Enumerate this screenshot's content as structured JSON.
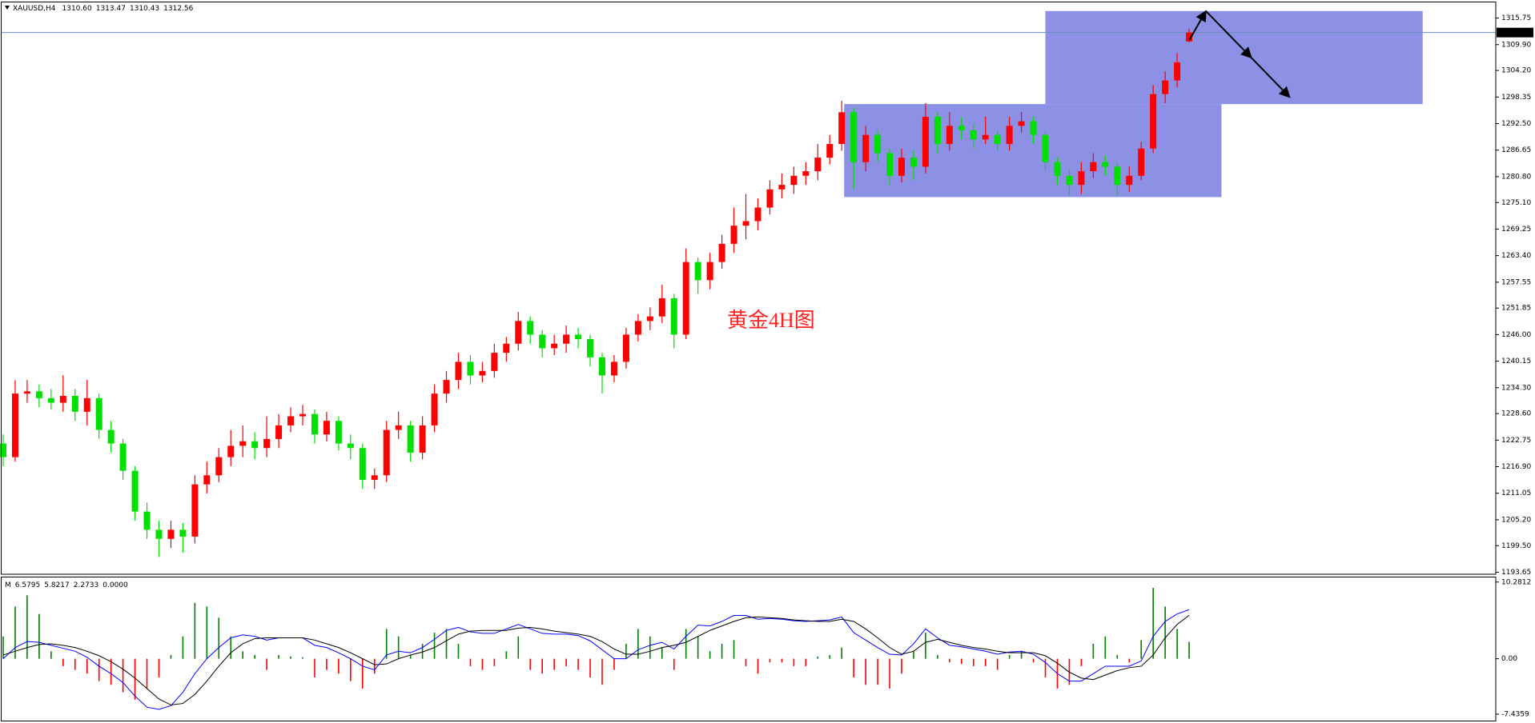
{
  "chart_data": [
    {
      "type": "candlestick",
      "title": "XAUUSD,H4",
      "header_values": [
        {
          "value": 1310.6,
          "label": "1310.60"
        },
        1313.47,
        1310.43,
        1312.56
      ],
      "annotation": "黄金4H图",
      "up_color": "#ff0000",
      "down_color": "#00e000",
      "zone_color": "#8c91e6",
      "last_price": 1312.56,
      "ylim": [
        1193.2,
        1319.2
      ],
      "yticks": [
        1315.75,
        {
          "value": 1309.9,
          "label": "1309.90"
        },
        {
          "value": 1304.2,
          "label": "1304.20"
        },
        1298.35,
        {
          "value": 1292.5,
          "label": "1292.50"
        },
        1286.65,
        {
          "value": 1280.8,
          "label": "1280.80"
        },
        {
          "value": 1275.1,
          "label": "1275.10"
        },
        1269.25,
        {
          "value": 1263.4,
          "label": "1263.40"
        },
        1257.55,
        1251.85,
        {
          "value": 1246,
          "label": "1246.00"
        },
        1240.15,
        {
          "value": 1234.3,
          "label": "1234.30"
        },
        {
          "value": 1228.6,
          "label": "1228.60"
        },
        1222.75,
        {
          "value": 1216.9,
          "label": "1216.90"
        },
        1211.05,
        {
          "value": 1205.2,
          "label": "1205.20"
        },
        {
          "value": 1199.5,
          "label": "1199.50"
        },
        1193.65
      ],
      "candles": {
        "open": [
          1222,
          1219,
          1233,
          1233.5,
          1232,
          1231,
          1232.5,
          1229,
          1232,
          1225,
          1222,
          1216,
          1207,
          1203,
          1201,
          1203,
          1201.5,
          1213,
          1215,
          1219,
          1221.5,
          1222.5,
          1221,
          1223,
          1226,
          1228,
          1228.5,
          1224,
          1227,
          1222,
          1221,
          1214,
          1215,
          1225,
          1226,
          1220,
          1226,
          1233,
          1236,
          1240,
          1237,
          1238,
          1242,
          1244,
          1249,
          1246,
          1243,
          1244,
          1246,
          1245,
          1241,
          1237,
          1240,
          1246,
          1249,
          1250,
          1254,
          1246,
          1262,
          1258,
          1262,
          1266,
          1270,
          1271,
          1274,
          1278,
          1279,
          1281,
          1282,
          1285,
          1288,
          1295,
          1284,
          1290,
          1286,
          1281,
          1285,
          1283,
          1294,
          1288,
          1292,
          1291,
          1289,
          1290,
          1288,
          1292,
          1293,
          1290,
          1284,
          1281,
          1279,
          1282,
          1284,
          1283,
          1279,
          1281,
          1287,
          1299,
          1302,
          1310.6
        ],
        "high": [
          1224,
          1236,
          1236,
          1235,
          1234,
          1237,
          1234,
          1236,
          1233,
          1227,
          1223,
          1217,
          1209,
          1205,
          1205,
          1204.5,
          1215,
          1218,
          1221,
          1225,
          1226,
          1224.5,
          1228,
          1228.5,
          1230,
          1230.5,
          1229.5,
          1229,
          1228,
          1224,
          1222,
          1216.5,
          1227,
          1229,
          1227,
          1228,
          1235,
          1238,
          1242,
          1241.5,
          1240,
          1244,
          1245.5,
          1251,
          1250,
          1247,
          1246,
          1248,
          1247.5,
          1246,
          1242,
          1241.5,
          1247.5,
          1250.5,
          1252,
          1257,
          1255,
          1265,
          1263,
          1264,
          1268,
          1274,
          1277,
          1276,
          1280,
          1281.5,
          1283,
          1284,
          1288,
          1290,
          1297.5,
          1296,
          1292,
          1291,
          1287,
          1287,
          1286.5,
          1297,
          1295,
          1295,
          1294,
          1292.5,
          1294,
          1291,
          1294,
          1295,
          1294,
          1291,
          1285,
          1282.5,
          1284,
          1286,
          1285.5,
          1284,
          1283,
          1288.5,
          1301,
          1304,
          1308,
          1313.47
        ],
        "low": [
          1217,
          1218,
          1231,
          1230,
          1229.5,
          1229,
          1227,
          1226,
          1223,
          1220,
          1214,
          1205,
          1201,
          1197,
          1199,
          1198,
          1200,
          1211,
          1213.5,
          1217,
          1219,
          1218.5,
          1219,
          1221,
          1224.5,
          1226,
          1222,
          1222.5,
          1220.5,
          1218.5,
          1212,
          1212,
          1213.5,
          1223,
          1218,
          1218.5,
          1224.5,
          1231,
          1234,
          1235,
          1235.5,
          1236.5,
          1240,
          1242.5,
          1244,
          1241,
          1241.5,
          1242,
          1243,
          1239,
          1233,
          1235.5,
          1238.5,
          1244.5,
          1247,
          1248.5,
          1243,
          1245,
          1255,
          1256,
          1260.5,
          1264,
          1267,
          1269,
          1272.5,
          1276,
          1277,
          1279,
          1280,
          1283.5,
          1286.5,
          1278,
          1282,
          1284,
          1279,
          1279.5,
          1280,
          1281.5,
          1286,
          1286.5,
          1289,
          1287,
          1288,
          1286.5,
          1286.5,
          1290.5,
          1288,
          1282,
          1279,
          1276.5,
          1277,
          1280.5,
          1281,
          1276.5,
          1277.5,
          1280,
          1286,
          1297,
          1300.5,
          1310.43
        ],
        "close": [
          1219,
          1233,
          1233.5,
          1232,
          1231,
          1232.5,
          1229,
          1232,
          1225,
          1222,
          1216,
          1207,
          1203,
          1201,
          1203,
          1201.5,
          1213,
          1215,
          1219,
          1221.5,
          1222.5,
          1221,
          1223,
          1226,
          1228,
          1228.5,
          1224,
          1227,
          1222,
          1221,
          1214,
          1215,
          1225,
          1226,
          1220,
          1226,
          1233,
          1236,
          1240,
          1237,
          1238,
          1242,
          1244,
          1249,
          1246,
          1243,
          1244,
          1246,
          1245,
          1241,
          1237,
          1240,
          1246,
          1249,
          1250,
          1254,
          1246,
          1262,
          1258,
          1262,
          1266,
          1270,
          1271,
          1274,
          1278,
          1279,
          1281,
          1282,
          1285,
          1288,
          1295,
          1284,
          1290,
          1286,
          1281,
          1285,
          1283,
          1294,
          1288,
          1292,
          1291,
          1289,
          1290,
          1288,
          1292,
          1293,
          1290,
          1284,
          1281,
          1279,
          1282,
          1284,
          1283,
          1279,
          1281,
          1287,
          1299,
          1302,
          1306,
          1312.56
        ]
      },
      "zones": [
        {
          "x": [
            70.2,
            101.7
          ],
          "y": [
            1276.3,
            1296.8
          ]
        },
        {
          "x": [
            87,
            118.5
          ],
          "y": [
            1296.8,
            1317.3
          ]
        }
      ],
      "arrows": [
        {
          "x": [
            99,
            100.4
          ],
          "y": [
            1310.8,
            1317.3
          ]
        },
        {
          "x": [
            100.4,
            104.2
          ],
          "y": [
            1317.3,
            1307
          ]
        },
        {
          "x": [
            104.2,
            107.4
          ],
          "y": [
            1307,
            1298.3
          ]
        }
      ]
    },
    {
      "type": "macd",
      "title": "M",
      "header_values": [
        6.5795,
        5.8217,
        2.2733,
        {
          "value": 0,
          "label": "0.0000"
        }
      ],
      "ylim": [
        -8.3,
        10.9
      ],
      "yticks": [
        10.2812,
        {
          "value": 0,
          "label": "0.00"
        },
        -7.4359
      ],
      "positive_color": "#008000",
      "negative_color": "#ff0000",
      "histogram": [
        3,
        7,
        8.5,
        6,
        1,
        -1,
        -1.5,
        -2,
        -3,
        -3.5,
        -4.5,
        -5.5,
        -4,
        -2.5,
        0.5,
        3,
        7.5,
        7,
        5.5,
        3,
        1,
        0.5,
        -1.5,
        0.5,
        0.3,
        0.2,
        -2.5,
        -1.5,
        -2,
        -3,
        -4,
        -2,
        4,
        3,
        0.5,
        2,
        3.5,
        4,
        2,
        -1,
        -1.5,
        -1,
        1,
        3,
        -1.5,
        -2,
        -1.5,
        -1,
        -1.5,
        -2.5,
        -3.5,
        -1.5,
        2,
        4,
        3,
        1.5,
        -1.5,
        4,
        3,
        1,
        2,
        2.5,
        -1,
        -2,
        -0.5,
        -0.5,
        -1,
        -1,
        0.3,
        0.5,
        1.5,
        -2.5,
        -3.5,
        -3.5,
        -4,
        -2,
        1,
        3.5,
        0.5,
        -0.5,
        -0.7,
        -1,
        -1,
        -1.5,
        0.5,
        1,
        -0.5,
        -2.5,
        -4,
        -3.5,
        -1,
        2,
        3,
        0.5,
        -0.5,
        2.5,
        9.5,
        7,
        4,
        2.2733
      ],
      "series": [
        {
          "color": "#0000ff",
          "values": [
            0,
            1.5,
            2.3,
            2.2,
            1.8,
            1.4,
            1,
            0.2,
            -1,
            -2,
            -3.2,
            -5,
            -6.5,
            -6.8,
            -6.3,
            -4.5,
            -2,
            0,
            1.5,
            2.8,
            3.2,
            3,
            2.5,
            2.8,
            2.8,
            2.8,
            1.8,
            1.5,
            0.8,
            0,
            -1,
            -1.5,
            0.5,
            1,
            0.8,
            1.5,
            2.6,
            3.8,
            4.2,
            3.6,
            3.4,
            3.4,
            4,
            4.6,
            4,
            3.4,
            3.3,
            3.3,
            3.1,
            2.4,
            1.2,
            0,
            0,
            1.2,
            1.8,
            2.2,
            1.3,
            3,
            4.5,
            4.4,
            5,
            5.8,
            5.8,
            5.3,
            5.4,
            5.3,
            5.1,
            5,
            5.1,
            5.2,
            5.6,
            3.5,
            2.5,
            1.5,
            0.6,
            0.5,
            2,
            4,
            2.8,
            1.8,
            1.6,
            1.3,
            1,
            0.6,
            0.9,
            1,
            0.6,
            -0.5,
            -2,
            -3,
            -3,
            -2,
            -1,
            -1,
            -1,
            -0.3,
            3,
            5,
            6,
            6.5795
          ]
        },
        {
          "color": "#000000",
          "values": [
            0.5,
            1,
            1.5,
            1.9,
            2,
            1.8,
            1.5,
            1,
            0.4,
            -0.4,
            -1.4,
            -2.6,
            -4,
            -5.4,
            -6.2,
            -6,
            -4.8,
            -3,
            -1,
            0.8,
            2,
            2.7,
            2.8,
            2.8,
            2.8,
            2.8,
            2.5,
            2,
            1.5,
            0.8,
            0,
            -0.8,
            -0.7,
            0,
            0.5,
            0.9,
            1.5,
            2.4,
            3.3,
            3.7,
            3.8,
            3.8,
            3.8,
            4.1,
            4.2,
            4,
            3.7,
            3.5,
            3.3,
            3,
            2.3,
            1.3,
            0.6,
            0.6,
            1,
            1.5,
            1.8,
            2.2,
            3,
            3.8,
            4.4,
            5,
            5.5,
            5.6,
            5.5,
            5.4,
            5.2,
            5.1,
            5,
            5,
            5.3,
            5,
            4,
            2.8,
            1.5,
            0.6,
            1,
            2.2,
            2.6,
            2.2,
            1.8,
            1.5,
            1.3,
            1,
            0.8,
            0.8,
            0.8,
            0.4,
            -0.6,
            -1.8,
            -2.6,
            -2.8,
            -2.2,
            -1.6,
            -1.2,
            -1,
            0.5,
            2.8,
            4.6,
            5.8217
          ]
        }
      ]
    }
  ]
}
